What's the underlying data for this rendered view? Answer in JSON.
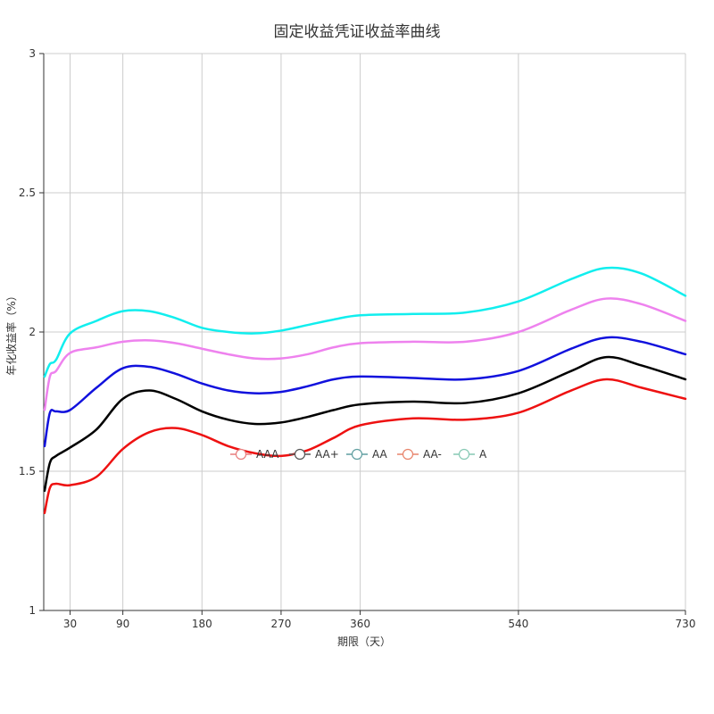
{
  "chart_data": {
    "type": "line",
    "title": "固定收益凭证收益率曲线",
    "xlabel": "期限（天）",
    "ylabel": "年化收益率（%）",
    "xlim": [
      0,
      730
    ],
    "ylim": [
      1,
      3
    ],
    "x_ticks": [
      30,
      90,
      180,
      270,
      360,
      540,
      730
    ],
    "y_ticks": [
      1,
      1.5,
      2,
      2.5,
      3
    ],
    "y_tick_labels": [
      "1",
      "1.5",
      "2",
      "2.5",
      "3"
    ],
    "grid": true,
    "smooth": true,
    "legend_position": "center",
    "x": [
      1,
      7,
      14,
      30,
      60,
      90,
      120,
      150,
      180,
      210,
      240,
      270,
      300,
      330,
      360,
      420,
      480,
      540,
      600,
      640,
      680,
      730
    ],
    "series": [
      {
        "name": "AAA",
        "legend_color": "#e87c7c",
        "color": "#ee1111",
        "values": [
          1.35,
          1.44,
          1.455,
          1.45,
          1.48,
          1.58,
          1.64,
          1.655,
          1.63,
          1.59,
          1.565,
          1.555,
          1.575,
          1.62,
          1.665,
          1.69,
          1.685,
          1.71,
          1.79,
          1.83,
          1.8,
          1.76
        ]
      },
      {
        "name": "AA+",
        "legend_color": "#555555",
        "color": "#000000",
        "values": [
          1.43,
          1.53,
          1.555,
          1.585,
          1.65,
          1.76,
          1.79,
          1.76,
          1.715,
          1.685,
          1.67,
          1.675,
          1.695,
          1.72,
          1.74,
          1.75,
          1.745,
          1.78,
          1.86,
          1.91,
          1.88,
          1.83
        ]
      },
      {
        "name": "AA",
        "legend_color": "#5f9ea0",
        "color": "#1111dd",
        "values": [
          1.59,
          1.71,
          1.715,
          1.72,
          1.8,
          1.87,
          1.875,
          1.85,
          1.815,
          1.79,
          1.78,
          1.785,
          1.805,
          1.83,
          1.84,
          1.835,
          1.83,
          1.86,
          1.94,
          1.98,
          1.965,
          1.92
        ]
      },
      {
        "name": "AA-",
        "legend_color": "#e8836a",
        "color": "#ee82ee",
        "values": [
          1.72,
          1.84,
          1.86,
          1.925,
          1.945,
          1.965,
          1.97,
          1.96,
          1.94,
          1.92,
          1.905,
          1.905,
          1.92,
          1.945,
          1.96,
          1.965,
          1.965,
          2.0,
          2.08,
          2.12,
          2.1,
          2.04
        ]
      },
      {
        "name": "A",
        "legend_color": "#86c9b4",
        "color": "#11eeee",
        "values": [
          1.84,
          1.885,
          1.9,
          1.995,
          2.04,
          2.075,
          2.075,
          2.05,
          2.015,
          2.0,
          1.995,
          2.005,
          2.025,
          2.045,
          2.06,
          2.065,
          2.07,
          2.11,
          2.19,
          2.23,
          2.21,
          2.13
        ]
      }
    ]
  }
}
